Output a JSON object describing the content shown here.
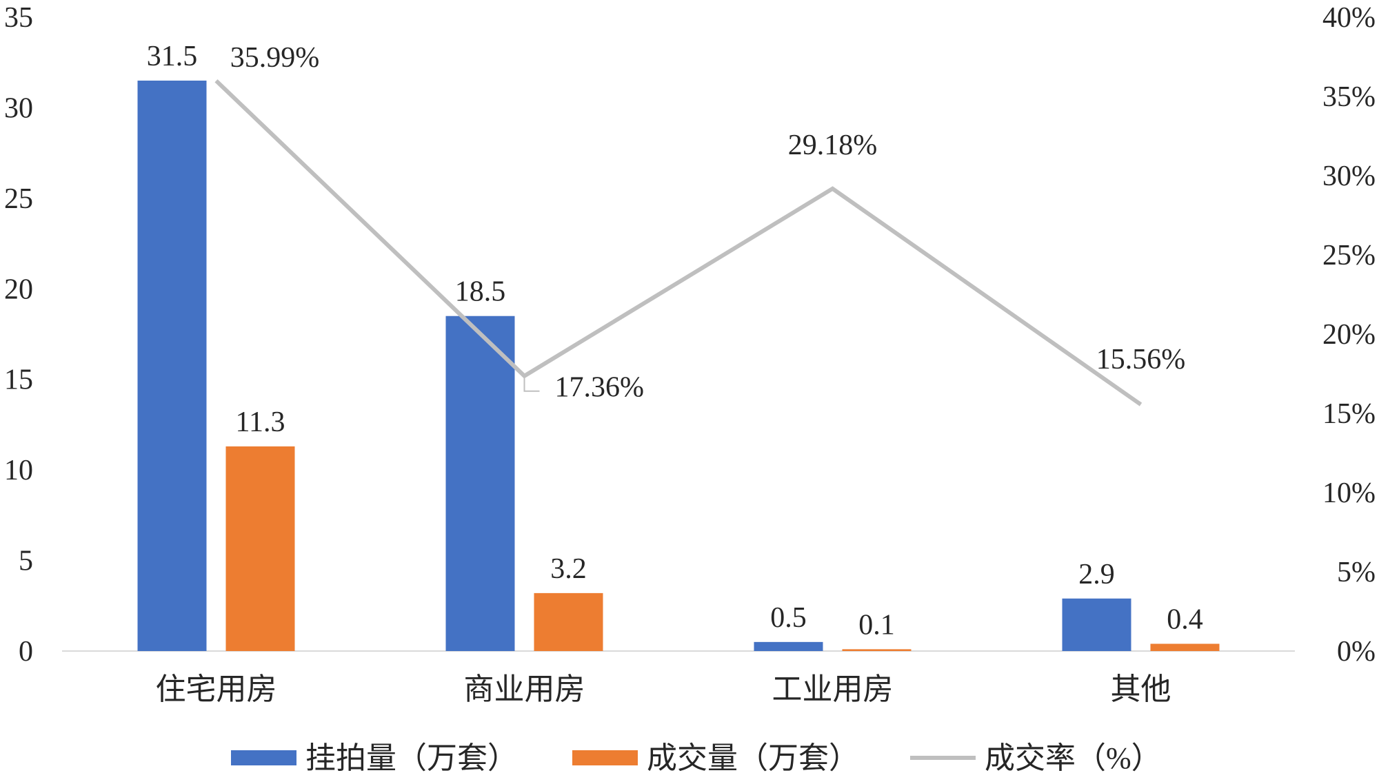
{
  "chart_data": {
    "type": "bar",
    "categories": [
      "住宅用房",
      "商业用房",
      "工业用房",
      "其他"
    ],
    "series": [
      {
        "name": "挂拍量（万套）",
        "type": "bar",
        "axis": "left",
        "color": "#4472C4",
        "values": [
          31.5,
          18.5,
          0.5,
          2.9
        ],
        "labels": [
          "31.5",
          "18.5",
          "0.5",
          "2.9"
        ]
      },
      {
        "name": "成交量（万套）",
        "type": "bar",
        "axis": "left",
        "color": "#ED7D31",
        "values": [
          11.3,
          3.2,
          0.1,
          0.4
        ],
        "labels": [
          "11.3",
          "3.2",
          "0.1",
          "0.4"
        ]
      },
      {
        "name": "成交率（%）",
        "type": "line",
        "axis": "right",
        "color": "#BFBFBF",
        "values": [
          35.99,
          17.36,
          29.18,
          15.56
        ],
        "labels": [
          "35.99%",
          "17.36%",
          "29.18%",
          "15.56%"
        ]
      }
    ],
    "y_left": {
      "ylim": [
        0,
        35
      ],
      "ticks": [
        "0",
        "5",
        "10",
        "15",
        "20",
        "25",
        "30",
        "35"
      ]
    },
    "y_right": {
      "ylim": [
        0,
        40
      ],
      "ticks": [
        "0%",
        "5%",
        "10%",
        "15%",
        "20%",
        "25%",
        "30%",
        "35%",
        "40%"
      ]
    },
    "title": "",
    "xlabel": "",
    "ylabel": "",
    "grid": false,
    "legend_position": "bottom"
  }
}
